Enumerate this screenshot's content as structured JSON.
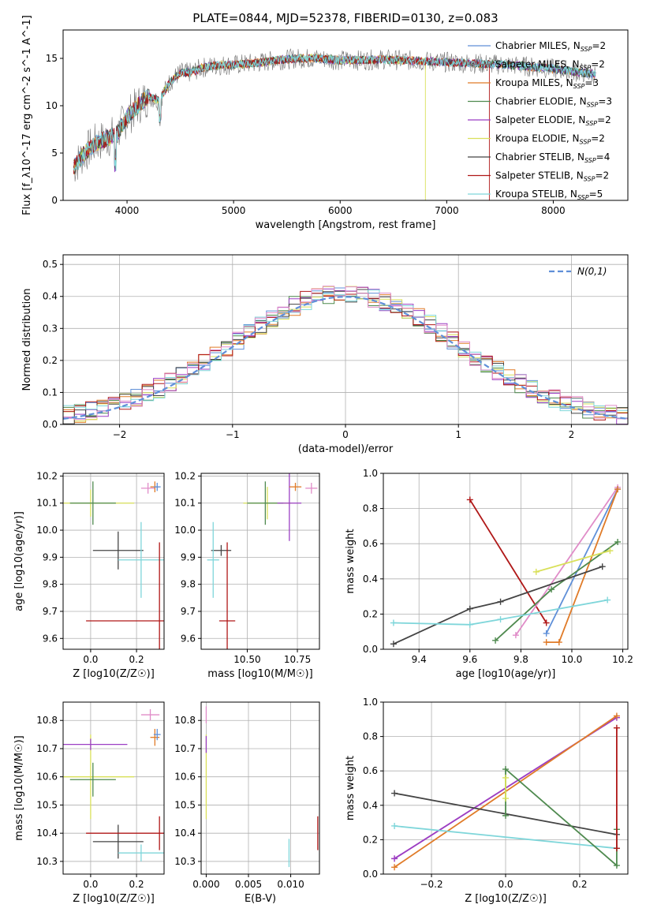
{
  "figure": {
    "title": "PLATE=0844, MJD=52378, FIBERID=0130, z=0.083"
  },
  "chart_data": [
    {
      "type": "line",
      "name": "spectrum",
      "xlabel": "wavelength [Angstrom, rest frame]",
      "ylabel": "Flux [f_λ10^-17 erg cm^-2 s^-1 A^-1]",
      "xlim": [
        3400,
        8700
      ],
      "ylim": [
        0,
        18
      ],
      "xticks": [
        4000,
        5000,
        6000,
        7000,
        8000
      ],
      "yticks": [
        0,
        5,
        10,
        15
      ],
      "legend": "right",
      "continuum": {
        "x": [
          3500,
          3600,
          3700,
          3800,
          3900,
          4000,
          4100,
          4200,
          4300,
          4400,
          4500,
          4600,
          4700,
          4800,
          4900,
          5000,
          5200,
          5400,
          5600,
          5800,
          6000,
          6200,
          6400,
          6600,
          6800,
          7000,
          7200,
          7400,
          7600,
          7800,
          8000,
          8200,
          8400
        ],
        "y": [
          3.5,
          5.0,
          6.0,
          6.5,
          7.0,
          8.8,
          10.0,
          11.0,
          10.5,
          12.5,
          13.5,
          13.5,
          14.0,
          14.2,
          14.3,
          14.3,
          14.5,
          14.8,
          15.0,
          15.0,
          14.8,
          14.8,
          14.9,
          14.8,
          14.7,
          14.6,
          14.5,
          14.4,
          14.3,
          14.1,
          13.9,
          13.6,
          13.3
        ]
      },
      "series": [
        {
          "label": "Chabrier MILES, N_SSP=2",
          "color": "#5f8fd8"
        },
        {
          "label": "Salpeter MILES, N_SSP=2",
          "color": "#777777"
        },
        {
          "label": "Kroupa MILES, N_SSP=3",
          "color": "#e07b28"
        },
        {
          "label": "Chabrier ELODIE, N_SSP=3",
          "color": "#4f8a4f"
        },
        {
          "label": "Salpeter ELODIE, N_SSP=2",
          "color": "#9b3fc4"
        },
        {
          "label": "Kroupa ELODIE, N_SSP=2",
          "color": "#d9e05a"
        },
        {
          "label": "Chabrier STELIB, N_SSP=4",
          "color": "#444444"
        },
        {
          "label": "Salpeter STELIB, N_SSP=2",
          "color": "#b01818"
        },
        {
          "label": "Kroupa STELIB, N_SSP=5",
          "color": "#7fd6da"
        }
      ]
    },
    {
      "type": "area",
      "name": "residual-histogram",
      "xlabel": "(data-model)/error",
      "ylabel": "Normed distribution",
      "xlim": [
        -2.5,
        2.5
      ],
      "ylim": [
        0,
        0.53
      ],
      "xticks": [
        -2,
        -1,
        0,
        1,
        2
      ],
      "yticks": [
        0.0,
        0.1,
        0.2,
        0.3,
        0.4,
        0.5
      ],
      "grid": true,
      "legend": "top-right",
      "legend_label": "N(0,1)",
      "gaussian": {
        "mu": 0,
        "sigma": 1,
        "color": "#5f8fd8"
      },
      "series": [
        {
          "color": "#5f8fd8",
          "offset": 0.0
        },
        {
          "color": "#e07b28",
          "offset": -0.008
        },
        {
          "color": "#4f8a4f",
          "offset": 0.006
        },
        {
          "color": "#9b3fc4",
          "offset": 0.01
        },
        {
          "color": "#d9e05a",
          "offset": -0.004
        },
        {
          "color": "#444444",
          "offset": 0.004
        },
        {
          "color": "#b01818",
          "offset": 0.012
        },
        {
          "color": "#7fd6da",
          "offset": -0.01
        },
        {
          "color": "#e08cc8",
          "offset": 0.008
        }
      ]
    },
    {
      "type": "scatter",
      "name": "age-vs-z",
      "xlabel": "Z [log10(Z/Z☉)]",
      "ylabel": "age [log10(age/yr)]",
      "xlim": [
        -0.12,
        0.32
      ],
      "ylim": [
        9.56,
        10.21
      ],
      "xticks": [
        0.0,
        0.2
      ],
      "yticks": [
        9.6,
        9.7,
        9.8,
        9.9,
        10.0,
        10.1,
        10.2
      ],
      "points": [
        {
          "x": 0.0,
          "y": 10.1,
          "ex": 0.19,
          "ey": 0.05,
          "color": "#d9e05a"
        },
        {
          "x": 0.01,
          "y": 10.1,
          "ex": 0.1,
          "ey": 0.08,
          "color": "#4f8a4f"
        },
        {
          "x": 0.12,
          "y": 9.925,
          "ex": 0.11,
          "ey": 0.07,
          "color": "#444444"
        },
        {
          "x": 0.22,
          "y": 9.89,
          "ex": 0.1,
          "ey": 0.14,
          "color": "#7fd6da"
        },
        {
          "x": 0.25,
          "y": 10.155,
          "ex": 0.03,
          "ey": 0.02,
          "color": "#e08cc8"
        },
        {
          "x": 0.28,
          "y": 10.16,
          "ex": 0.02,
          "ey": 0.02,
          "color": "#e07b28"
        },
        {
          "x": 0.29,
          "y": 10.16,
          "ex": 0.015,
          "ey": 0.015,
          "color": "#5f8fd8"
        },
        {
          "x": 0.3,
          "y": 9.665,
          "ex": 0.32,
          "ey": 0.29,
          "color": "#b01818"
        }
      ]
    },
    {
      "type": "scatter",
      "name": "age-vs-mass",
      "xlabel": "mass [log10(M/M☉)]",
      "ylabel": "",
      "xlim": [
        10.27,
        10.86
      ],
      "ylim": [
        9.56,
        10.21
      ],
      "xticks": [
        10.5,
        10.75
      ],
      "yticks": [
        9.6,
        9.7,
        9.8,
        9.9,
        10.0,
        10.1,
        10.2
      ],
      "points": [
        {
          "x": 10.6,
          "y": 10.1,
          "ex": 0.12,
          "ey": 0.06,
          "color": "#d9e05a"
        },
        {
          "x": 10.59,
          "y": 10.1,
          "ex": 0.09,
          "ey": 0.08,
          "color": "#4f8a4f"
        },
        {
          "x": 10.37,
          "y": 9.925,
          "ex": 0.05,
          "ey": 0.02,
          "color": "#444444"
        },
        {
          "x": 10.33,
          "y": 9.89,
          "ex": 0.03,
          "ey": 0.14,
          "color": "#7fd6da"
        },
        {
          "x": 10.71,
          "y": 10.1,
          "ex": 0.06,
          "ey": 0.14,
          "color": "#9b3fc4"
        },
        {
          "x": 10.82,
          "y": 10.155,
          "ex": 0.03,
          "ey": 0.02,
          "color": "#e08cc8"
        },
        {
          "x": 10.74,
          "y": 10.16,
          "ex": 0.03,
          "ey": 0.015,
          "color": "#e07b28"
        },
        {
          "x": 10.4,
          "y": 9.665,
          "ex": 0.04,
          "ey": 0.29,
          "color": "#b01818"
        }
      ]
    },
    {
      "type": "line",
      "name": "mass-weight-vs-age",
      "xlabel": "age [log10(age/yr)]",
      "ylabel": "mass weight",
      "xlim": [
        9.26,
        10.22
      ],
      "ylim": [
        0.0,
        1.0
      ],
      "xticks": [
        9.4,
        9.6,
        9.8,
        10.0,
        10.2
      ],
      "yticks": [
        0.0,
        0.2,
        0.4,
        0.6,
        0.8,
        1.0
      ],
      "grid": true,
      "series": [
        {
          "color": "#b01818",
          "x": [
            9.6,
            9.9
          ],
          "y": [
            0.85,
            0.15
          ]
        },
        {
          "color": "#e08cc8",
          "x": [
            9.78,
            10.18
          ],
          "y": [
            0.08,
            0.92
          ]
        },
        {
          "color": "#5f8fd8",
          "x": [
            9.9,
            10.18
          ],
          "y": [
            0.09,
            0.91
          ]
        },
        {
          "color": "#e07b28",
          "x": [
            9.9,
            9.95,
            10.18
          ],
          "y": [
            0.04,
            0.04,
            0.91
          ]
        },
        {
          "color": "#4f8a4f",
          "x": [
            9.7,
            9.92,
            10.18
          ],
          "y": [
            0.05,
            0.34,
            0.61
          ]
        },
        {
          "color": "#d9e05a",
          "x": [
            9.86,
            10.15
          ],
          "y": [
            0.44,
            0.56
          ]
        },
        {
          "color": "#444444",
          "x": [
            9.3,
            9.6,
            9.72,
            10.12
          ],
          "y": [
            0.03,
            0.23,
            0.27,
            0.47
          ]
        },
        {
          "color": "#7fd6da",
          "x": [
            9.3,
            9.6,
            9.72,
            10.14
          ],
          "y": [
            0.15,
            0.14,
            0.17,
            0.28
          ]
        }
      ]
    },
    {
      "type": "scatter",
      "name": "mass-vs-z",
      "xlabel": "Z [log10(Z/Z☉)]",
      "ylabel": "mass [log10(M/M☉)]",
      "xlim": [
        -0.12,
        0.32
      ],
      "ylim": [
        10.255,
        10.865
      ],
      "xticks": [
        0.0,
        0.2
      ],
      "yticks": [
        10.3,
        10.4,
        10.5,
        10.6,
        10.7,
        10.8
      ],
      "points": [
        {
          "x": 0.0,
          "y": 10.6,
          "ex": 0.19,
          "ey": 0.15,
          "color": "#d9e05a"
        },
        {
          "x": 0.01,
          "y": 10.59,
          "ex": 0.1,
          "ey": 0.06,
          "color": "#4f8a4f"
        },
        {
          "x": 0.0,
          "y": 10.715,
          "ex": 0.16,
          "ey": 0.02,
          "color": "#9b3fc4"
        },
        {
          "x": 0.12,
          "y": 10.37,
          "ex": 0.11,
          "ey": 0.06,
          "color": "#444444"
        },
        {
          "x": 0.22,
          "y": 10.33,
          "ex": 0.1,
          "ey": 0.03,
          "color": "#7fd6da"
        },
        {
          "x": 0.26,
          "y": 10.82,
          "ex": 0.04,
          "ey": 0.02,
          "color": "#e08cc8"
        },
        {
          "x": 0.28,
          "y": 10.74,
          "ex": 0.02,
          "ey": 0.03,
          "color": "#e07b28"
        },
        {
          "x": 0.29,
          "y": 10.75,
          "ex": 0.015,
          "ey": 0.02,
          "color": "#5f8fd8"
        },
        {
          "x": 0.3,
          "y": 10.4,
          "ex": 0.32,
          "ey": 0.06,
          "color": "#b01818"
        }
      ]
    },
    {
      "type": "scatter",
      "name": "mass-vs-ebv",
      "xlabel": "E(B-V)",
      "ylabel": "",
      "xlim": [
        -0.0006,
        0.0134
      ],
      "ylim": [
        10.255,
        10.865
      ],
      "xticks": [
        0.0,
        0.005,
        0.01
      ],
      "xticklabels": [
        "0.000",
        "0.005",
        "0.010"
      ],
      "yticks": [
        10.3,
        10.4,
        10.5,
        10.6,
        10.7,
        10.8
      ],
      "points": [
        {
          "x": 0.0,
          "y": 10.6,
          "ex": 0,
          "ey": 0.15,
          "color": "#d9e05a"
        },
        {
          "x": 0.0,
          "y": 10.715,
          "ex": 0,
          "ey": 0.03,
          "color": "#9b3fc4"
        },
        {
          "x": 0.0,
          "y": 10.82,
          "ex": 0,
          "ey": 0.03,
          "color": "#e08cc8"
        },
        {
          "x": 0.0098,
          "y": 10.33,
          "ex": 0,
          "ey": 0.05,
          "color": "#7fd6da"
        },
        {
          "x": 0.0132,
          "y": 10.4,
          "ex": 0,
          "ey": 0.06,
          "color": "#b01818"
        }
      ]
    },
    {
      "type": "line",
      "name": "mass-weight-vs-z",
      "xlabel": "Z [log10(Z/Z☉)]",
      "ylabel": "mass weight",
      "xlim": [
        -0.33,
        0.33
      ],
      "ylim": [
        0.0,
        1.0
      ],
      "xticks": [
        -0.2,
        0.0,
        0.2
      ],
      "yticks": [
        0.0,
        0.2,
        0.4,
        0.6,
        0.8,
        1.0
      ],
      "grid": true,
      "series": [
        {
          "color": "#e08cc8",
          "x": [
            -0.3,
            0.3
          ],
          "y": [
            0.09,
            0.91
          ]
        },
        {
          "color": "#9b3fc4",
          "x": [
            -0.3,
            0.3
          ],
          "y": [
            0.09,
            0.91
          ]
        },
        {
          "color": "#e07b28",
          "x": [
            -0.3,
            0.3
          ],
          "y": [
            0.04,
            0.92
          ]
        },
        {
          "color": "#444444",
          "x": [
            -0.3,
            0.3
          ],
          "y": [
            0.47,
            0.23
          ]
        },
        {
          "color": "#7fd6da",
          "x": [
            -0.3,
            0.3
          ],
          "y": [
            0.28,
            0.15
          ]
        },
        {
          "color": "#4f8a4f",
          "x": [
            0.0,
            0.0,
            0.3,
            0.3
          ],
          "y": [
            0.34,
            0.61,
            0.05,
            0.26
          ]
        },
        {
          "color": "#d9e05a",
          "x": [
            0.0,
            0.0
          ],
          "y": [
            0.44,
            0.56
          ]
        },
        {
          "color": "#b01818",
          "x": [
            0.3,
            0.3
          ],
          "y": [
            0.15,
            0.85
          ]
        }
      ]
    }
  ]
}
